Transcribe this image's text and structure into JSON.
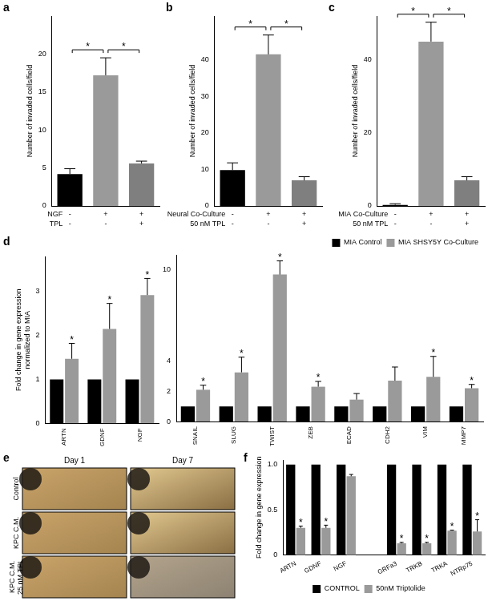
{
  "chart_data": [
    {
      "panel": "a",
      "type": "bar",
      "categories": [
        null,
        null,
        null
      ],
      "values": [
        4.2,
        17.2,
        5.6
      ],
      "errors": [
        0.7,
        2.3,
        0.3
      ],
      "colors": [
        "#000000",
        "#9a9a9a",
        "#7f7f7f"
      ],
      "y_label": "Number of invaded cells/field",
      "ylim": [
        0,
        25
      ],
      "yticks": [
        0,
        5,
        10,
        15,
        20
      ],
      "grid": false,
      "tick_labels": "y",
      "condition_rows": [
        {
          "name": "NGF",
          "signs": [
            "-",
            "+",
            "+"
          ]
        },
        {
          "name": "TPL",
          "signs": [
            "-",
            "-",
            "+"
          ]
        }
      ],
      "significance_brackets": [
        {
          "from": 0,
          "to": 1,
          "label": "*"
        },
        {
          "from": 1,
          "to": 2,
          "label": "*"
        }
      ]
    },
    {
      "panel": "b",
      "type": "bar",
      "categories": [
        null,
        null,
        null
      ],
      "values": [
        9.8,
        41.5,
        7.0
      ],
      "errors": [
        2.0,
        5.3,
        1.0
      ],
      "colors": [
        "#000000",
        "#9a9a9a",
        "#7f7f7f"
      ],
      "y_label": "Number of invaded cells/field",
      "ylim": [
        0,
        52
      ],
      "yticks": [
        0,
        10,
        20,
        30,
        40
      ],
      "grid": false,
      "tick_labels": "y",
      "condition_rows": [
        {
          "name": "Neural Co-Culture",
          "signs": [
            "-",
            "+",
            "+"
          ]
        },
        {
          "name": "50 nM TPL",
          "signs": [
            "-",
            "-",
            "+"
          ]
        }
      ],
      "significance_brackets": [
        {
          "from": 0,
          "to": 1,
          "label": "*"
        },
        {
          "from": 1,
          "to": 2,
          "label": "*"
        }
      ]
    },
    {
      "panel": "c",
      "type": "bar",
      "categories": [
        null,
        null,
        null
      ],
      "values": [
        0.3,
        45.0,
        7.0
      ],
      "errors": [
        0.3,
        5.3,
        1.0
      ],
      "colors": [
        "#000000",
        "#9a9a9a",
        "#7f7f7f"
      ],
      "y_label": "Number of invaded cells/field",
      "ylim": [
        0,
        52
      ],
      "yticks": [
        0,
        20,
        40
      ],
      "grid": false,
      "tick_labels": "y",
      "condition_rows": [
        {
          "name": "MIA Co-Culture",
          "signs": [
            "-",
            "+",
            "+"
          ]
        },
        {
          "name": "50 nM TPL",
          "signs": [
            "-",
            "-",
            "+"
          ]
        }
      ],
      "significance_brackets": [
        {
          "from": 0,
          "to": 1,
          "label": "*"
        },
        {
          "from": 1,
          "to": 2,
          "label": "*"
        }
      ]
    },
    {
      "panel": "d",
      "type": "bar",
      "categories": [
        "ARTN",
        "GDNF",
        "NGF"
      ],
      "series": [
        {
          "name": "MIA Control",
          "color": "#000000",
          "values": [
            1,
            1,
            1
          ]
        },
        {
          "name": "MIA SHSY5Y Co-Culture",
          "color": "#9a9a9a",
          "values": [
            1.47,
            2.15,
            2.92
          ],
          "errors": [
            0.35,
            0.58,
            0.38
          ],
          "significance": [
            "*",
            "*",
            "*"
          ]
        }
      ],
      "y_label": [
        "Fold change in gene expression",
        "normalized to MIA"
      ],
      "ylim": [
        0,
        3.8
      ],
      "yticks": [
        0,
        1,
        2,
        3
      ],
      "grid": false
    },
    {
      "type": "bar",
      "categories": [
        "SNAIL",
        "SLUG",
        "TWIST",
        "ZEB",
        "ECAD",
        "CDH2",
        "VIM",
        "MMP7"
      ],
      "series": [
        {
          "name": "MIA Control",
          "color": "#000000",
          "values": [
            1,
            1,
            1,
            1,
            1,
            1,
            1,
            1
          ]
        },
        {
          "name": "MIA SHSY5Y Co-Culture",
          "color": "#9a9a9a",
          "values": [
            2.1,
            3.25,
            9.7,
            2.3,
            1.45,
            2.7,
            2.95,
            2.2
          ],
          "errors": [
            0.3,
            1.0,
            0.9,
            0.35,
            0.4,
            0.9,
            1.35,
            0.25
          ],
          "significance": [
            "*",
            "*",
            "*",
            "*",
            null,
            null,
            "*",
            "*"
          ]
        }
      ],
      "ylim": [
        0,
        11
      ],
      "yticks": [
        0,
        2,
        4,
        10
      ],
      "grid": false,
      "legend": "top-right"
    },
    {
      "panel": "f",
      "type": "bar",
      "categories": [
        "ARTN",
        "GDNF",
        "NGF",
        null,
        "GRFa3",
        "TRKB",
        "TRKA",
        "NTRp75"
      ],
      "series": [
        {
          "name": "CONTROL",
          "color": "#000000",
          "values": [
            1,
            1,
            1,
            null,
            1,
            1,
            1,
            1
          ]
        },
        {
          "name": "50nM Triptolide",
          "color": "#9a9a9a",
          "values": [
            0.3,
            0.3,
            0.87,
            null,
            0.13,
            0.13,
            0.27,
            0.26
          ],
          "errors": [
            0.02,
            0.03,
            0.02,
            null,
            0.01,
            0.01,
            0.005,
            0.13
          ],
          "significance": [
            "*",
            "*",
            null,
            null,
            "*",
            "*",
            "*",
            "*"
          ]
        }
      ],
      "y_label": "Fold change in gene expression",
      "ylim": [
        0,
        1.05
      ],
      "yticks": [
        0,
        0.5,
        {
          "value": 1,
          "label": "1.0"
        }
      ],
      "grid": false,
      "legend": "bottom"
    }
  ],
  "image_panel": {
    "panel": "e",
    "columns": [
      "Day 1",
      "Day 7"
    ],
    "rows": [
      [
        "Control"
      ],
      [
        "KPC C.M."
      ],
      [
        "KPC C.M.",
        "25 nM TPL"
      ]
    ]
  }
}
